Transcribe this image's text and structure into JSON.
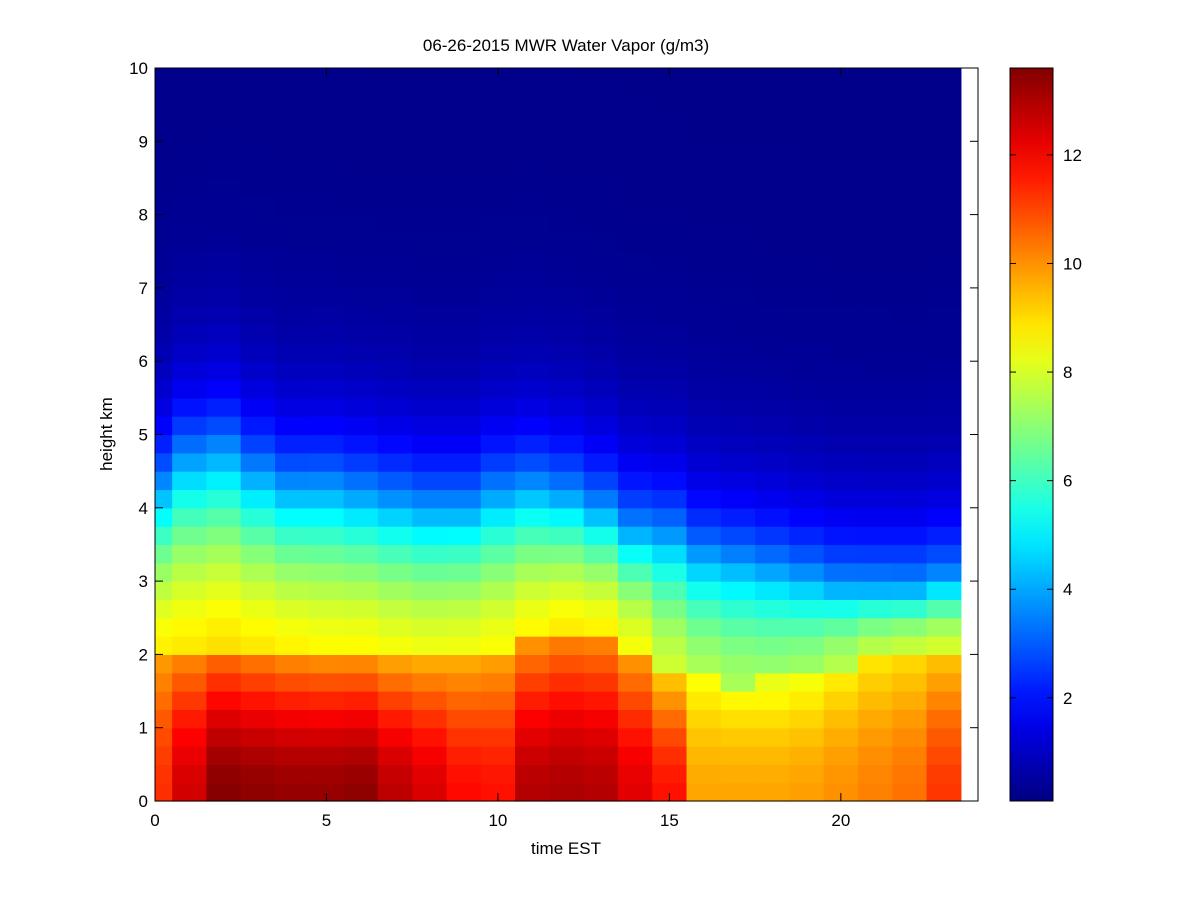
{
  "chart_data": {
    "type": "heatmap",
    "title": "06-26-2015 MWR Water Vapor (g/m3)",
    "xlabel": "time EST",
    "ylabel": "height km",
    "xlim": [
      0,
      24
    ],
    "ylim": [
      0,
      10
    ],
    "x_ticks": [
      0,
      5,
      10,
      15,
      20
    ],
    "y_ticks": [
      0,
      1,
      2,
      3,
      4,
      5,
      6,
      7,
      8,
      9,
      10
    ],
    "colorbar": {
      "range": [
        0.1,
        13.6
      ],
      "ticks": [
        2,
        4,
        6,
        8,
        10,
        12
      ],
      "colormap": "jet"
    },
    "grid": false,
    "data_extent": {
      "x": [
        0,
        23.5
      ],
      "y": [
        0,
        9.75
      ]
    },
    "x_centers": [
      0,
      1,
      2,
      3,
      4,
      5,
      6,
      7,
      8,
      9,
      10,
      11,
      12,
      13,
      14,
      15,
      16,
      17,
      18,
      19,
      20,
      21,
      22,
      23
    ],
    "heights": [
      0,
      0.25,
      0.5,
      0.75,
      1.0,
      1.25,
      1.5,
      1.75,
      2.0,
      2.25,
      2.5,
      2.75,
      3.0,
      3.25,
      3.5,
      3.75,
      4.0,
      4.25,
      4.5,
      4.75,
      5.0,
      5.25,
      5.5,
      5.75,
      6.0,
      6.25,
      6.5,
      6.75,
      7.0,
      7.25,
      7.5,
      7.75,
      8.0,
      8.25,
      8.5,
      8.75,
      9.0,
      9.25,
      9.5,
      9.75
    ],
    "surface_values": [
      11.3,
      12.5,
      13.5,
      13.4,
      13.3,
      13.3,
      13.4,
      12.8,
      12.4,
      11.8,
      11.7,
      12.9,
      13.0,
      12.9,
      12.3,
      11.7,
      9.7,
      9.7,
      9.7,
      9.8,
      10.0,
      10.2,
      10.4,
      11.2
    ],
    "boundary_top_km": [
      1.85,
      1.85,
      1.9,
      1.85,
      1.8,
      1.8,
      1.8,
      1.75,
      1.75,
      1.8,
      1.85,
      2.0,
      2.1,
      2.1,
      1.9,
      1.6,
      1.5,
      1.45,
      1.5,
      1.55,
      1.7,
      1.8,
      1.85,
      1.9
    ],
    "moist_layer_top_km": [
      4.2,
      4.6,
      4.7,
      4.4,
      4.2,
      4.2,
      4.1,
      4.0,
      3.9,
      3.9,
      4.1,
      4.2,
      4.1,
      3.9,
      3.6,
      3.5,
      3.2,
      3.1,
      3.0,
      2.9,
      2.8,
      2.8,
      2.8,
      2.9
    ],
    "free_troposphere_values": [
      8.3,
      8.4,
      8.5,
      8.4,
      8.3,
      8.2,
      8.2,
      8.1,
      8.0,
      8.0,
      8.1,
      8.3,
      8.4,
      8.3,
      8.0,
      7.5,
      7.1,
      6.9,
      6.8,
      6.9,
      7.1,
      7.4,
      7.5,
      7.6
    ]
  }
}
